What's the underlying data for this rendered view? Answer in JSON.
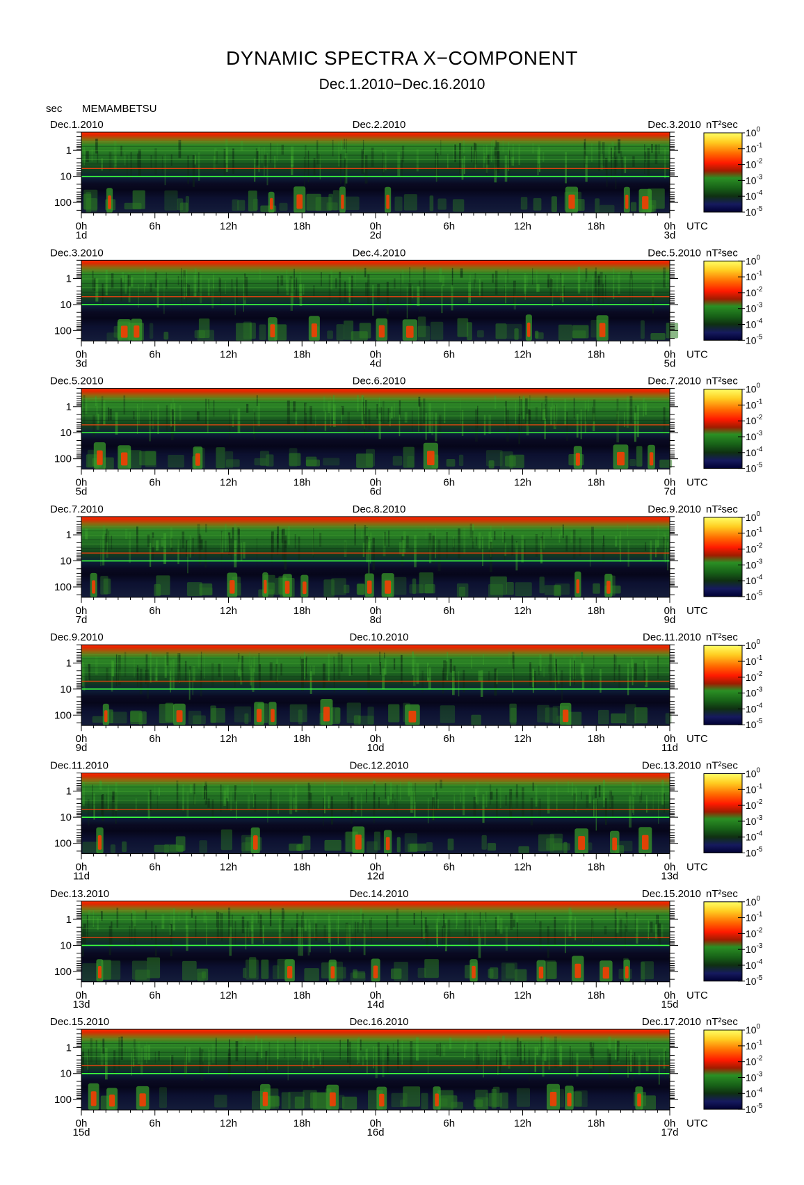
{
  "title": "DYNAMIC SPECTRA X−COMPONENT",
  "subtitle": "Dec.1.2010−Dec.16.2010",
  "station": "MEMAMBETSU",
  "yunit": "sec",
  "chart_data": {
    "type": "heatmap",
    "title": "DYNAMIC SPECTRA X−COMPONENT",
    "subtitle": "Dec.1.2010−Dec.16.2010",
    "ylabel": "sec",
    "ylabel_scale": "log",
    "ylim": [
      0.2,
      250
    ],
    "yticks": [
      "1",
      "10",
      "100"
    ],
    "xticks": [
      "0h",
      "6h",
      "12h",
      "18h",
      "0h",
      "6h",
      "12h",
      "18h",
      "0h"
    ],
    "xunit": "UTC",
    "colorbar": {
      "unit": "nT²sec",
      "tick_base": "10",
      "tick_exponents": [
        "0",
        "-1",
        "-2",
        "-3",
        "-4",
        "-5"
      ],
      "colors": [
        "#ffff66",
        "#ffb000",
        "#ff2a00",
        "#b01e00",
        "#228b22",
        "#124a12",
        "#1a1a66",
        "#000044"
      ]
    },
    "panels": [
      {
        "left_date": "Dec.1.2010",
        "mid_date": "Dec.2.2010",
        "right_date": "Dec.3.2010",
        "day_labels": [
          "1d",
          "2d",
          "3d"
        ],
        "events": [
          2.3,
          15.5,
          17.8,
          21.3,
          25.0,
          40.0,
          44.5,
          46.0
        ]
      },
      {
        "left_date": "Dec.3.2010",
        "mid_date": "Dec.4.2010",
        "right_date": "Dec.5.2010",
        "day_labels": [
          "3d",
          "4d",
          "5d"
        ],
        "events": [
          3.5,
          4.5,
          15.6,
          19.0,
          24.5,
          26.8,
          36.5,
          42.5
        ]
      },
      {
        "left_date": "Dec.5.2010",
        "mid_date": "Dec.6.2010",
        "right_date": "Dec.7.2010",
        "day_labels": [
          "5d",
          "6d",
          "7d"
        ],
        "events": [
          1.5,
          3.5,
          9.5,
          28.5,
          40.5,
          44.0,
          46.5
        ]
      },
      {
        "left_date": "Dec.7.2010",
        "mid_date": "Dec.8.2010",
        "right_date": "Dec.9.2010",
        "day_labels": [
          "7d",
          "8d",
          "9d"
        ],
        "events": [
          1.0,
          12.3,
          15.0,
          16.8,
          18.2,
          23.5,
          25.0,
          40.5,
          43.0
        ]
      },
      {
        "left_date": "Dec.9.2010",
        "mid_date": "Dec.10.2010",
        "right_date": "Dec.11.2010",
        "day_labels": [
          "9d",
          "10d",
          "11d"
        ],
        "events": [
          2.0,
          8.0,
          14.5,
          15.6,
          20.0,
          27.0,
          39.5
        ]
      },
      {
        "left_date": "Dec.11.2010",
        "mid_date": "Dec.12.2010",
        "right_date": "Dec.13.2010",
        "day_labels": [
          "11d",
          "12d",
          "13d"
        ],
        "events": [
          1.5,
          14.2,
          22.6,
          25.0,
          40.8,
          43.5,
          46.0
        ]
      },
      {
        "left_date": "Dec.13.2010",
        "mid_date": "Dec.14.2010",
        "right_date": "Dec.15.2010",
        "day_labels": [
          "13d",
          "14d",
          "15d"
        ],
        "events": [
          1.5,
          17.0,
          20.5,
          24.0,
          32.0,
          37.5,
          40.5,
          42.8,
          44.5
        ]
      },
      {
        "left_date": "Dec.15.2010",
        "mid_date": "Dec.16.2010",
        "right_date": "Dec.17.2010",
        "day_labels": [
          "15d",
          "16d",
          "17d"
        ],
        "events": [
          1.0,
          2.5,
          5.0,
          15.0,
          20.5,
          24.5,
          29.0,
          38.5,
          39.8,
          45.5
        ]
      }
    ]
  }
}
